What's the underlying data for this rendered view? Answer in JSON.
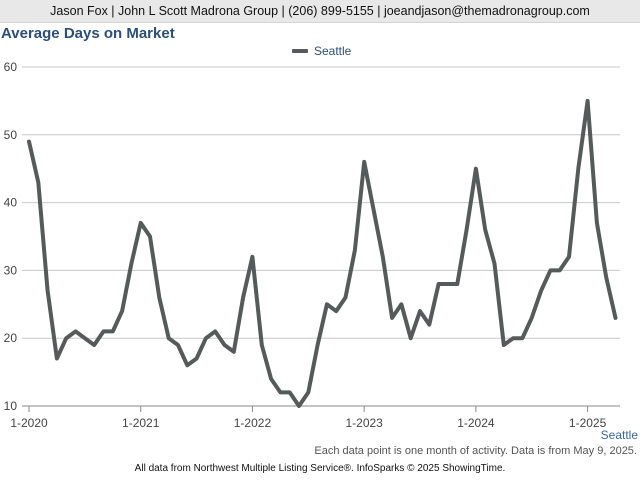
{
  "header": {
    "contact_text": "Jason Fox | John L Scott Madrona Group | (206) 899-5155 | joeandjason@themadronagroup.com"
  },
  "chart_data": {
    "type": "line",
    "title": "Average Days on Market",
    "xlabel": "",
    "ylabel": "",
    "ylim": [
      10,
      60
    ],
    "yticks": [
      10,
      20,
      30,
      40,
      50,
      60
    ],
    "grid": "horizontal",
    "legend_position": "top-center",
    "xticks": [
      {
        "label": "1-2020",
        "index": 0
      },
      {
        "label": "1-2021",
        "index": 12
      },
      {
        "label": "1-2022",
        "index": 24
      },
      {
        "label": "1-2023",
        "index": 36
      },
      {
        "label": "1-2024",
        "index": 48
      },
      {
        "label": "1-2025",
        "index": 60
      }
    ],
    "series": [
      {
        "name": "Seattle",
        "color": "#555b5a",
        "values": [
          49,
          43,
          27,
          17,
          20,
          21,
          20,
          19,
          21,
          21,
          24,
          31,
          37,
          35,
          26,
          20,
          19,
          16,
          17,
          20,
          21,
          19,
          18,
          26,
          32,
          19,
          14,
          12,
          12,
          10,
          12,
          19,
          25,
          24,
          26,
          33,
          46,
          39,
          32,
          23,
          25,
          20,
          24,
          22,
          28,
          28,
          28,
          36,
          45,
          36,
          31,
          19,
          20,
          20,
          23,
          27,
          30,
          30,
          32,
          45,
          55,
          37,
          29,
          23
        ]
      }
    ]
  },
  "series_end_label": "Seattle",
  "note": "Each data point is one month of activity. Data is from May 9, 2025.",
  "footer": "All data from Northwest Multiple Listing Service®. InfoSparks © 2025 ShowingTime."
}
